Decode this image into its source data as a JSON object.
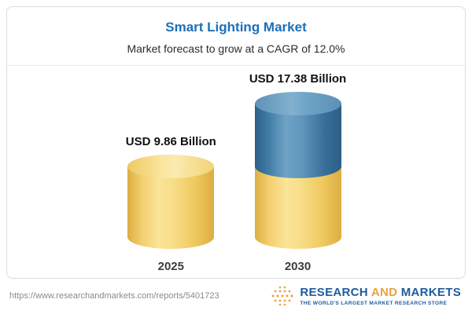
{
  "header": {
    "title": "Smart Lighting Market",
    "subtitle": "Market forecast to grow at a CAGR of 12.0%"
  },
  "chart_data": {
    "type": "bar",
    "bar_style": "3d-cylinder",
    "title": "Smart Lighting Market",
    "subtitle": "Market forecast to grow at a CAGR of 12.0%",
    "categories": [
      "2025",
      "2030"
    ],
    "values": [
      9.86,
      17.38
    ],
    "value_labels": [
      "USD 9.86 Billion",
      "USD 17.38 Billion"
    ],
    "unit": "USD Billion",
    "cagr_percent": 12.0,
    "ylim": [
      0,
      17.38
    ],
    "legend": false,
    "grid": false,
    "segments": {
      "2025": [
        {
          "value": 9.86,
          "color": "#f5d678"
        }
      ],
      "2030": [
        {
          "value": 9.86,
          "color": "#f5d678"
        },
        {
          "value": 7.52,
          "color": "#3e7ca8"
        }
      ]
    },
    "colors": {
      "yellow": "#f5d678",
      "blue": "#3e7ca8"
    }
  },
  "footer": {
    "url": "https://www.researchandmarkets.com/reports/5401723",
    "brand": {
      "name_part1": "RESEARCH",
      "name_part2": "AND",
      "name_part3": "MARKETS",
      "tagline": "THE WORLD'S LARGEST MARKET RESEARCH STORE"
    }
  },
  "colors": {
    "title_blue": "#1b6fb8",
    "brand_blue": "#1d5c9e",
    "brand_gold": "#e9a13b",
    "card_border": "#dcdcdc"
  }
}
